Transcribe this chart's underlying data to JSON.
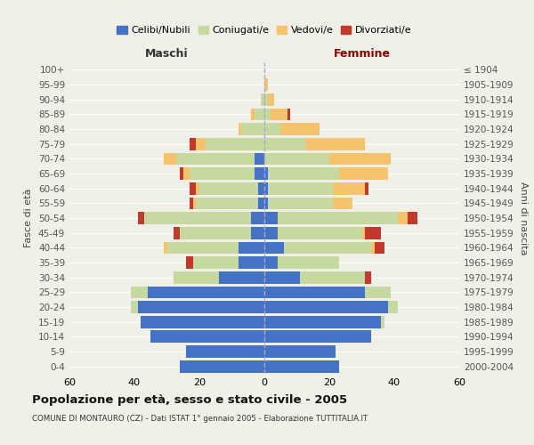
{
  "age_groups": [
    "0-4",
    "5-9",
    "10-14",
    "15-19",
    "20-24",
    "25-29",
    "30-34",
    "35-39",
    "40-44",
    "45-49",
    "50-54",
    "55-59",
    "60-64",
    "65-69",
    "70-74",
    "75-79",
    "80-84",
    "85-89",
    "90-94",
    "95-99",
    "100+"
  ],
  "birth_years": [
    "2000-2004",
    "1995-1999",
    "1990-1994",
    "1985-1989",
    "1980-1984",
    "1975-1979",
    "1970-1974",
    "1965-1969",
    "1960-1964",
    "1955-1959",
    "1950-1954",
    "1945-1949",
    "1940-1944",
    "1935-1939",
    "1930-1934",
    "1925-1929",
    "1920-1924",
    "1915-1919",
    "1910-1914",
    "1905-1909",
    "≤ 1904"
  ],
  "males": {
    "celibi": [
      26,
      24,
      35,
      38,
      39,
      36,
      14,
      8,
      8,
      4,
      4,
      2,
      2,
      3,
      3,
      0,
      0,
      0,
      0,
      0,
      0
    ],
    "coniugati": [
      0,
      0,
      0,
      0,
      2,
      5,
      14,
      14,
      22,
      22,
      33,
      19,
      18,
      20,
      24,
      18,
      7,
      3,
      1,
      0,
      0
    ],
    "vedovi": [
      0,
      0,
      0,
      0,
      0,
      0,
      0,
      0,
      1,
      0,
      0,
      1,
      1,
      2,
      4,
      3,
      1,
      1,
      0,
      0,
      0
    ],
    "divorziati": [
      0,
      0,
      0,
      0,
      0,
      0,
      0,
      2,
      0,
      2,
      2,
      1,
      2,
      1,
      0,
      2,
      0,
      0,
      0,
      0,
      0
    ]
  },
  "females": {
    "nubili": [
      23,
      22,
      33,
      36,
      38,
      31,
      11,
      4,
      6,
      4,
      4,
      1,
      1,
      1,
      0,
      0,
      0,
      0,
      0,
      0,
      0
    ],
    "coniugate": [
      0,
      0,
      0,
      1,
      3,
      8,
      20,
      19,
      27,
      26,
      37,
      20,
      20,
      22,
      20,
      13,
      5,
      2,
      1,
      0,
      0
    ],
    "vedove": [
      0,
      0,
      0,
      0,
      0,
      0,
      0,
      0,
      1,
      1,
      3,
      6,
      10,
      15,
      19,
      18,
      12,
      5,
      2,
      1,
      0
    ],
    "divorziate": [
      0,
      0,
      0,
      0,
      0,
      0,
      2,
      0,
      3,
      5,
      3,
      0,
      1,
      0,
      0,
      0,
      0,
      1,
      0,
      0,
      0
    ]
  },
  "colors": {
    "celibi": "#4472c4",
    "coniugati": "#c5d9a0",
    "vedovi": "#f5c36b",
    "divorziati": "#c0392b"
  },
  "xlim": 60,
  "title": "Popolazione per età, sesso e stato civile - 2005",
  "subtitle": "COMUNE DI MONTAURO (CZ) - Dati ISTAT 1° gennaio 2005 - Elaborazione TUTTITALIA.IT",
  "xlabel_left": "Maschi",
  "xlabel_right": "Femmine",
  "ylabel_left": "Fasce di età",
  "ylabel_right": "Anni di nascita",
  "legend_labels": [
    "Celibi/Nubili",
    "Coniugati/e",
    "Vedovi/e",
    "Divorziati/e"
  ],
  "bg_color": "#f0f0e8"
}
